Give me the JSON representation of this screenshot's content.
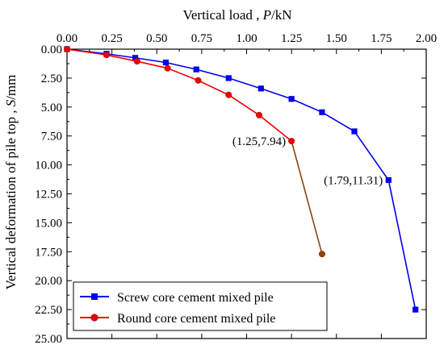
{
  "chart_data": {
    "type": "line",
    "xlabel_prefix": "Vertical load , ",
    "xlabel_var": "P",
    "xlabel_unit": "/kN",
    "ylabel_prefix": "Vertical deformation of pile top , ",
    "ylabel_var": "S",
    "ylabel_unit": "/mm",
    "xlim": [
      0,
      2.0
    ],
    "ylim": [
      0,
      25
    ],
    "y_inverted": true,
    "x_axis_position": "top",
    "x_ticks": [
      "0.00",
      "0.25",
      "0.50",
      "0.75",
      "1.00",
      "1.25",
      "1.50",
      "1.75",
      "2.00"
    ],
    "y_ticks": [
      "0.00",
      "2.50",
      "5.00",
      "7.50",
      "10.00",
      "12.50",
      "15.00",
      "17.50",
      "20.00",
      "22.50",
      "25.00"
    ],
    "grid": false,
    "legend_position": "bottom-left",
    "series": [
      {
        "name": "Screw core cement mixed pile",
        "color": "#0000ee",
        "marker": "square",
        "x": [
          0,
          0.22,
          0.38,
          0.55,
          0.72,
          0.9,
          1.08,
          1.25,
          1.42,
          1.6,
          1.79,
          1.94
        ],
        "y": [
          0,
          0.4,
          0.75,
          1.15,
          1.75,
          2.5,
          3.4,
          4.3,
          5.45,
          7.1,
          11.31,
          22.5
        ]
      },
      {
        "name": "Round core cement mixed pile",
        "color": "#ee0000",
        "marker": "circle",
        "x": [
          0,
          0.22,
          0.39,
          0.56,
          0.73,
          0.9,
          1.07,
          1.25,
          1.42
        ],
        "y": [
          0,
          0.5,
          1.05,
          1.65,
          2.7,
          3.95,
          5.7,
          7.94,
          17.7
        ]
      }
    ],
    "failure_segment": {
      "series": "Round core cement mixed pile",
      "from_x": 1.25,
      "from_y": 7.94,
      "to_x": 1.42,
      "to_y": 17.7,
      "color": "#8b4513"
    },
    "annotations": [
      {
        "text": "(1.25,7.94)",
        "at_x": 1.25,
        "at_y": 7.94,
        "anchor": "left"
      },
      {
        "text": "(1.79,11.31)",
        "at_x": 1.79,
        "at_y": 11.31,
        "anchor": "left"
      }
    ]
  }
}
